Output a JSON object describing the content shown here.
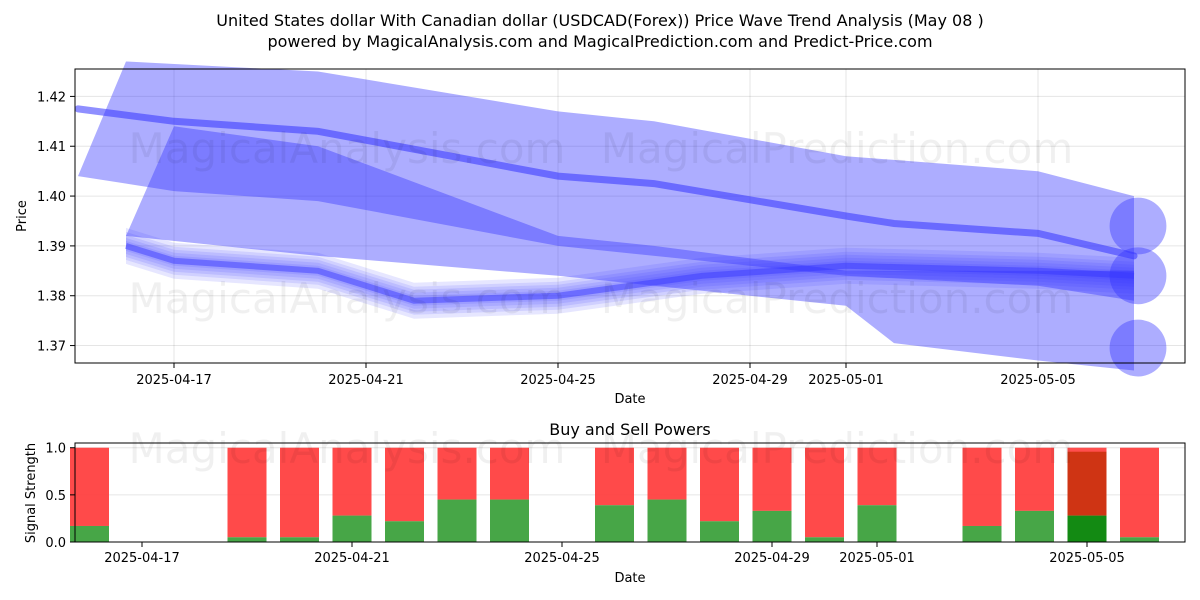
{
  "title_line1": "United States dollar With Canadian dollar (USDCAD(Forex)) Price Wave Trend Analysis (May 08 )",
  "title_line2": "powered by MagicalAnalysis.com and MagicalPrediction.com and Predict-Price.com",
  "watermarks": [
    "MagicalAnalysis.com",
    "MagicalPrediction.com"
  ],
  "colors": {
    "wave": "#3333ff",
    "buy": "#2e9a2e",
    "sell": "#ff3b3b",
    "buy_strong": "#138a13",
    "sell_strong": "#cc3311"
  },
  "chart_data": [
    {
      "type": "area",
      "title": "",
      "xlabel": "Date",
      "ylabel": "Price",
      "ylim": [
        1.3665,
        1.4255
      ],
      "x_ticks": [
        "2025-04-17",
        "2025-04-21",
        "2025-04-25",
        "2025-04-29",
        "2025-05-01",
        "2025-05-05"
      ],
      "y_ticks": [
        "1.37",
        "1.38",
        "1.39",
        "1.40",
        "1.41",
        "1.42"
      ],
      "y_tick_values": [
        1.37,
        1.38,
        1.39,
        1.4,
        1.41,
        1.42
      ],
      "series": [
        {
          "name": "wave-band-upper",
          "points": [
            [
              "2025-04-15",
              1.404
            ],
            [
              "2025-04-16",
              1.427
            ],
            [
              "2025-04-20",
              1.425
            ],
            [
              "2025-04-25",
              1.417
            ],
            [
              "2025-04-27",
              1.415
            ],
            [
              "2025-05-01",
              1.408
            ],
            [
              "2025-05-05",
              1.405
            ],
            [
              "2025-05-07",
              1.4
            ]
          ]
        },
        {
          "name": "wave-band-upper-low",
          "points": [
            [
              "2025-04-15",
              1.404
            ],
            [
              "2025-04-17",
              1.401
            ],
            [
              "2025-04-20",
              1.399
            ],
            [
              "2025-04-25",
              1.39
            ],
            [
              "2025-04-28",
              1.387
            ],
            [
              "2025-05-01",
              1.384
            ],
            [
              "2025-05-05",
              1.382
            ],
            [
              "2025-05-07",
              1.379
            ]
          ]
        },
        {
          "name": "wave-center-upper",
          "points": [
            [
              "2025-04-15",
              1.4175
            ],
            [
              "2025-04-17",
              1.415
            ],
            [
              "2025-04-20",
              1.413
            ],
            [
              "2025-04-25",
              1.404
            ],
            [
              "2025-04-27",
              1.4025
            ],
            [
              "2025-05-01",
              1.396
            ],
            [
              "2025-05-02",
              1.3945
            ],
            [
              "2025-05-05",
              1.3925
            ],
            [
              "2025-05-07",
              1.388
            ]
          ]
        },
        {
          "name": "wave-band-lower",
          "points": [
            [
              "2025-04-16",
              1.392
            ],
            [
              "2025-04-17",
              1.414
            ],
            [
              "2025-04-20",
              1.41
            ],
            [
              "2025-04-25",
              1.392
            ],
            [
              "2025-04-27",
              1.39
            ],
            [
              "2025-05-01",
              1.385
            ],
            [
              "2025-05-05",
              1.385
            ],
            [
              "2025-05-07",
              1.385
            ]
          ]
        },
        {
          "name": "wave-band-lower-low",
          "points": [
            [
              "2025-04-16",
              1.392
            ],
            [
              "2025-04-20",
              1.388
            ],
            [
              "2025-04-25",
              1.384
            ],
            [
              "2025-05-01",
              1.378
            ],
            [
              "2025-05-02",
              1.3705
            ],
            [
              "2025-05-05",
              1.367
            ],
            [
              "2025-05-07",
              1.365
            ]
          ]
        },
        {
          "name": "wave-cluster-mid",
          "points": [
            [
              "2025-04-16",
              1.39
            ],
            [
              "2025-04-17",
              1.387
            ],
            [
              "2025-04-20",
              1.385
            ],
            [
              "2025-04-22",
              1.379
            ],
            [
              "2025-04-25",
              1.38
            ],
            [
              "2025-04-28",
              1.384
            ],
            [
              "2025-05-01",
              1.386
            ],
            [
              "2025-05-05",
              1.385
            ],
            [
              "2025-05-07",
              1.384
            ]
          ]
        }
      ]
    },
    {
      "type": "bar",
      "title": "Buy and Sell Powers",
      "xlabel": "Date",
      "ylabel": "Signal Strength",
      "ylim": [
        0,
        1.05
      ],
      "x_ticks": [
        "2025-04-17",
        "2025-04-21",
        "2025-04-25",
        "2025-04-29",
        "2025-05-01",
        "2025-05-05"
      ],
      "y_ticks": [
        "0.0",
        "0.5",
        "1.0"
      ],
      "y_tick_values": [
        0,
        0.5,
        1.0
      ],
      "categories": [
        "2025-04-16",
        "2025-04-19",
        "2025-04-20",
        "2025-04-21",
        "2025-04-22",
        "2025-04-23",
        "2025-04-24",
        "2025-04-26",
        "2025-04-27",
        "2025-04-28",
        "2025-04-29",
        "2025-04-30",
        "2025-05-01",
        "2025-05-03",
        "2025-05-04",
        "2025-05-05",
        "2025-05-06"
      ],
      "series": [
        {
          "name": "Buy",
          "values": [
            0.17,
            0.05,
            0.05,
            0.28,
            0.22,
            0.45,
            0.45,
            0.39,
            0.45,
            0.22,
            0.33,
            0.05,
            0.39,
            0.17,
            0.33,
            0.28,
            0.05
          ]
        },
        {
          "name": "Sell",
          "values": [
            0.83,
            0.95,
            0.95,
            0.72,
            0.78,
            0.55,
            0.55,
            0.61,
            0.55,
            0.78,
            0.67,
            0.95,
            0.61,
            0.83,
            0.67,
            0.72,
            0.95
          ]
        }
      ],
      "highlight_index": 15
    }
  ]
}
